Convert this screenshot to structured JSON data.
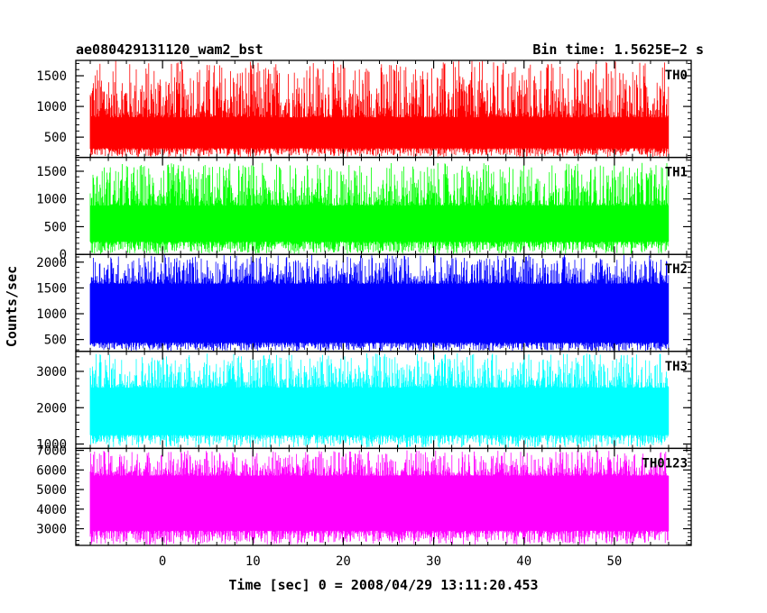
{
  "header": {
    "title": "ae080429131120_wam2_bst",
    "bin_time": "Bin time: 1.5625E−2 s"
  },
  "chart_data": {
    "type": "line",
    "xlabel": "Time [sec] 0 = 2008/04/29 13:11:20.453",
    "ylabel": "Counts/sec",
    "xlim": [
      -9.6,
      58.5
    ],
    "x_ticks": [
      0,
      10,
      20,
      30,
      40,
      50
    ],
    "x_data_range": [
      -8,
      56
    ],
    "panels": [
      {
        "name": "TH0",
        "color": "#ff0000",
        "ylim": [
          170,
          1750
        ],
        "y_ticks": [
          500,
          1000,
          1500
        ],
        "band": [
          320,
          820
        ],
        "spike_max": 1750
      },
      {
        "name": "TH1",
        "color": "#00ff00",
        "ylim": [
          0,
          1750
        ],
        "y_ticks": [
          0,
          500,
          1000,
          1500
        ],
        "band": [
          230,
          880
        ],
        "spike_max": 1650
      },
      {
        "name": "TH2",
        "color": "#0000ff",
        "ylim": [
          270,
          2150
        ],
        "y_ticks": [
          500,
          1000,
          1500,
          2000
        ],
        "band": [
          440,
          1580
        ],
        "spike_max": 2150
      },
      {
        "name": "TH3",
        "color": "#00ffff",
        "ylim": [
          880,
          3550
        ],
        "y_ticks": [
          1000,
          2000,
          3000
        ],
        "band": [
          1250,
          2550
        ],
        "spike_max": 3500
      },
      {
        "name": "TH0123",
        "color": "#ff00ff",
        "ylim": [
          2150,
          7100
        ],
        "y_ticks": [
          3000,
          4000,
          5000,
          6000,
          7000
        ],
        "band": [
          2900,
          5700
        ],
        "spike_max": 7000
      }
    ]
  }
}
